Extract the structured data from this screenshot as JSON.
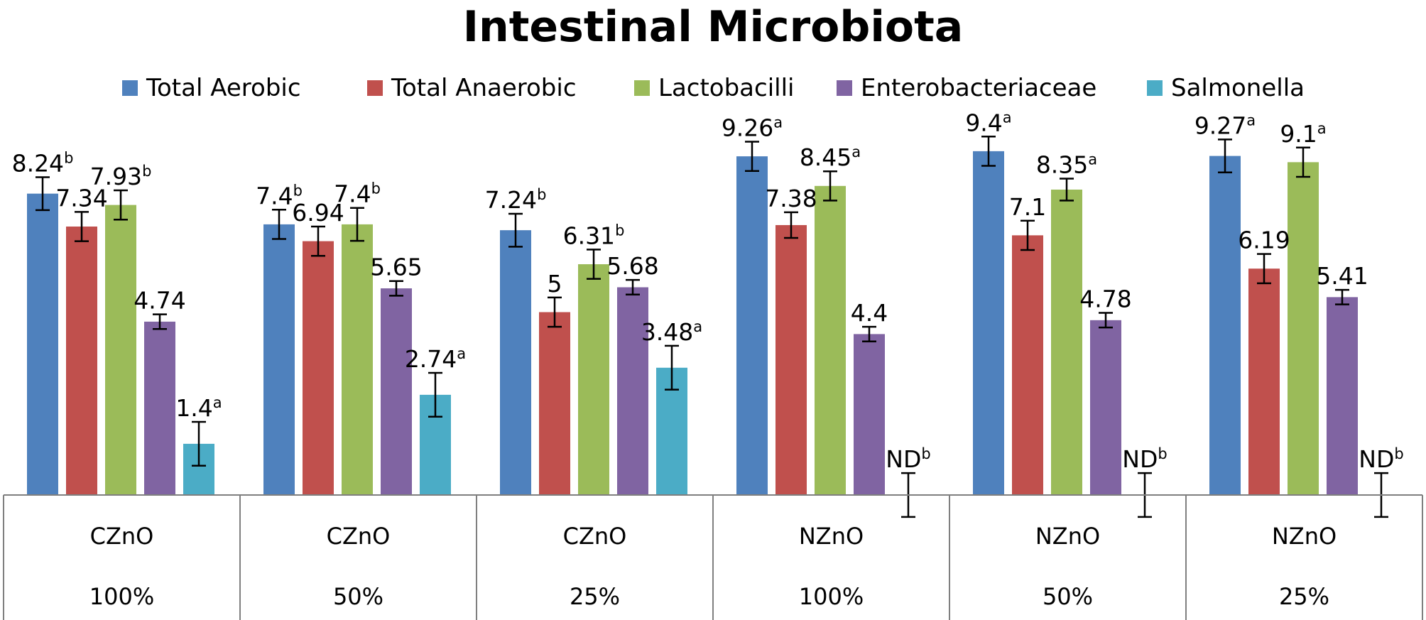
{
  "chart_data": {
    "type": "bar",
    "title": "Intestinal Microbiota",
    "legend_position": "top",
    "categories": [
      {
        "line1": "CZnO",
        "line2": "100%"
      },
      {
        "line1": "CZnO",
        "line2": "50%"
      },
      {
        "line1": "CZnO",
        "line2": "25%"
      },
      {
        "line1": "NZnO",
        "line2": "100%"
      },
      {
        "line1": "NZnO",
        "line2": "50%"
      },
      {
        "line1": "NZnO",
        "line2": "25%"
      }
    ],
    "ylim": [
      0,
      10
    ],
    "grid": false,
    "error_bars": true,
    "series": [
      {
        "name": "Total Aerobic",
        "color": "#4F81BD",
        "values": [
          8.24,
          7.4,
          7.24,
          9.26,
          9.4,
          9.27
        ],
        "errors": [
          0.45,
          0.4,
          0.45,
          0.4,
          0.4,
          0.45
        ],
        "labels": [
          {
            "text": "8.24",
            "sup": "b"
          },
          {
            "text": "7.4",
            "sup": "b"
          },
          {
            "text": "7.24",
            "sup": "b"
          },
          {
            "text": "9.26",
            "sup": "a"
          },
          {
            "text": "9.4",
            "sup": "a"
          },
          {
            "text": "9.27",
            "sup": "a"
          }
        ]
      },
      {
        "name": "Total Anaerobic",
        "color": "#C0504D",
        "values": [
          7.34,
          6.94,
          5.0,
          7.38,
          7.1,
          6.19
        ],
        "errors": [
          0.4,
          0.4,
          0.4,
          0.35,
          0.4,
          0.4
        ],
        "labels": [
          {
            "text": "7.34",
            "sup": ""
          },
          {
            "text": "6.94",
            "sup": ""
          },
          {
            "text": "5",
            "sup": ""
          },
          {
            "text": "7.38",
            "sup": ""
          },
          {
            "text": "7.1",
            "sup": ""
          },
          {
            "text": "6.19",
            "sup": ""
          }
        ]
      },
      {
        "name": "Lactobacilli",
        "color": "#9BBB59",
        "values": [
          7.93,
          7.4,
          6.31,
          8.45,
          8.35,
          9.1
        ],
        "errors": [
          0.4,
          0.45,
          0.4,
          0.4,
          0.3,
          0.4
        ],
        "labels": [
          {
            "text": "7.93",
            "sup": "b"
          },
          {
            "text": "7.4",
            "sup": "b"
          },
          {
            "text": "6.31",
            "sup": "b"
          },
          {
            "text": "8.45",
            "sup": "a"
          },
          {
            "text": "8.35",
            "sup": "a"
          },
          {
            "text": "9.1",
            "sup": "a"
          }
        ]
      },
      {
        "name": "Enterobacteriaceae",
        "color": "#8064A2",
        "values": [
          4.74,
          5.65,
          5.68,
          4.4,
          4.78,
          5.41
        ],
        "errors": [
          0.2,
          0.2,
          0.2,
          0.2,
          0.2,
          0.2
        ],
        "labels": [
          {
            "text": "4.74",
            "sup": ""
          },
          {
            "text": "5.65",
            "sup": ""
          },
          {
            "text": "5.68",
            "sup": ""
          },
          {
            "text": "4.4",
            "sup": ""
          },
          {
            "text": "4.78",
            "sup": ""
          },
          {
            "text": "5.41",
            "sup": ""
          }
        ]
      },
      {
        "name": "Salmonella",
        "color": "#4BACC6",
        "values": [
          1.4,
          2.74,
          3.48,
          0,
          0,
          0
        ],
        "errors": [
          0.6,
          0.6,
          0.6,
          0.6,
          0.6,
          0.6
        ],
        "labels": [
          {
            "text": "1.4",
            "sup": "a"
          },
          {
            "text": "2.74",
            "sup": "a"
          },
          {
            "text": "3.48",
            "sup": "a"
          },
          {
            "text": "ND",
            "sup": "b"
          },
          {
            "text": "ND",
            "sup": "b"
          },
          {
            "text": "ND",
            "sup": "b"
          }
        ]
      }
    ]
  }
}
